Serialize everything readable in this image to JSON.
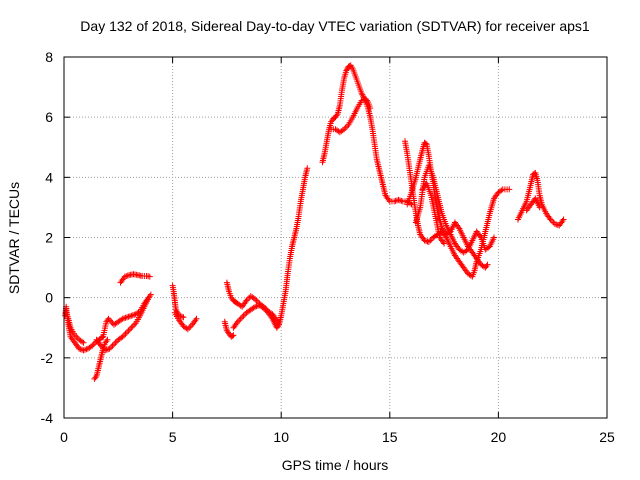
{
  "chart_data": {
    "type": "scatter",
    "title": "Day 132 of 2018, Sidereal Day-to-day VTEC variation (SDTVAR) for receiver aps1",
    "xlabel": "GPS time / hours",
    "ylabel": "SDTVAR / TECUs",
    "xlim": [
      0,
      25
    ],
    "ylim": [
      -4,
      8
    ],
    "xticks": [
      0,
      5,
      10,
      15,
      20,
      25
    ],
    "yticks": [
      -4,
      -2,
      0,
      2,
      4,
      6,
      8
    ],
    "grid": true,
    "marker": "+",
    "colors": {
      "series": "#ff0000",
      "grid": "#a0a0a0",
      "axes": "#000000"
    },
    "series": [
      {
        "name": "SDTVAR",
        "segments": [
          [
            [
              0.05,
              -0.6
            ],
            [
              0.1,
              -0.3
            ],
            [
              0.2,
              -0.9
            ],
            [
              0.3,
              -1.3
            ],
            [
              0.5,
              -1.5
            ],
            [
              0.7,
              -1.7
            ],
            [
              0.9,
              -1.75
            ],
            [
              1.1,
              -1.7
            ],
            [
              1.3,
              -1.6
            ],
            [
              1.5,
              -1.45
            ],
            [
              1.7,
              -1.35
            ],
            [
              1.8,
              -1.3
            ]
          ],
          [
            [
              0.1,
              -0.5
            ],
            [
              0.2,
              -0.7
            ],
            [
              0.3,
              -1.0
            ],
            [
              0.5,
              -1.25
            ],
            [
              0.7,
              -1.4
            ],
            [
              0.9,
              -1.5
            ]
          ],
          [
            [
              1.4,
              -2.7
            ],
            [
              1.5,
              -2.6
            ],
            [
              1.6,
              -2.3
            ],
            [
              1.7,
              -2.0
            ],
            [
              1.8,
              -1.7
            ],
            [
              1.9,
              -1.5
            ],
            [
              2.0,
              -1.4
            ]
          ],
          [
            [
              1.5,
              -1.4
            ],
            [
              1.7,
              -1.6
            ],
            [
              1.9,
              -1.75
            ],
            [
              2.1,
              -1.7
            ],
            [
              2.3,
              -1.55
            ],
            [
              2.5,
              -1.4
            ],
            [
              2.7,
              -1.3
            ],
            [
              2.9,
              -1.15
            ],
            [
              3.1,
              -1.0
            ],
            [
              3.3,
              -0.85
            ],
            [
              3.5,
              -0.6
            ],
            [
              3.7,
              -0.3
            ],
            [
              3.9,
              0.0
            ],
            [
              4.0,
              0.1
            ]
          ],
          [
            [
              1.8,
              -1.3
            ],
            [
              1.95,
              -0.8
            ],
            [
              2.05,
              -0.7
            ],
            [
              2.3,
              -0.9
            ],
            [
              2.5,
              -0.8
            ],
            [
              2.7,
              -0.7
            ],
            [
              2.9,
              -0.65
            ],
            [
              3.1,
              -0.6
            ],
            [
              3.3,
              -0.55
            ],
            [
              3.5,
              -0.45
            ],
            [
              3.7,
              -0.2
            ],
            [
              3.85,
              -0.05
            ]
          ],
          [
            [
              2.6,
              0.5
            ],
            [
              2.7,
              0.6
            ],
            [
              2.8,
              0.7
            ],
            [
              3.0,
              0.75
            ],
            [
              3.2,
              0.78
            ],
            [
              3.4,
              0.75
            ],
            [
              3.6,
              0.72
            ],
            [
              3.8,
              0.72
            ],
            [
              3.95,
              0.7
            ]
          ],
          [
            [
              5.0,
              0.4
            ],
            [
              5.05,
              0.2
            ],
            [
              5.1,
              -0.1
            ],
            [
              5.15,
              -0.4
            ],
            [
              5.3,
              -0.6
            ],
            [
              5.5,
              -0.65
            ]
          ],
          [
            [
              5.1,
              -0.5
            ],
            [
              5.3,
              -0.75
            ],
            [
              5.5,
              -0.95
            ],
            [
              5.7,
              -1.05
            ],
            [
              5.9,
              -0.9
            ],
            [
              6.1,
              -0.7
            ]
          ],
          [
            [
              7.4,
              -0.8
            ],
            [
              7.5,
              -1.1
            ],
            [
              7.6,
              -1.2
            ],
            [
              7.7,
              -1.3
            ],
            [
              7.8,
              -1.25
            ]
          ],
          [
            [
              7.5,
              0.5
            ],
            [
              7.6,
              0.2
            ],
            [
              7.7,
              0.0
            ],
            [
              7.8,
              -0.1
            ],
            [
              7.9,
              -0.15
            ],
            [
              8.0,
              -0.2
            ],
            [
              8.2,
              -0.3
            ],
            [
              8.4,
              -0.1
            ],
            [
              8.6,
              0.05
            ],
            [
              8.8,
              -0.05
            ],
            [
              9.0,
              -0.2
            ],
            [
              9.2,
              -0.3
            ],
            [
              9.4,
              -0.45
            ],
            [
              9.6,
              -0.55
            ],
            [
              9.8,
              -0.75
            ],
            [
              9.9,
              -0.9
            ]
          ],
          [
            [
              7.8,
              -1.0
            ],
            [
              8.0,
              -0.8
            ],
            [
              8.2,
              -0.65
            ],
            [
              8.4,
              -0.5
            ],
            [
              8.6,
              -0.4
            ],
            [
              8.8,
              -0.3
            ],
            [
              9.0,
              -0.25
            ],
            [
              9.2,
              -0.35
            ],
            [
              9.4,
              -0.5
            ],
            [
              9.6,
              -0.7
            ],
            [
              9.7,
              -0.85
            ],
            [
              9.8,
              -1.0
            ],
            [
              9.9,
              -0.9
            ],
            [
              10.0,
              -0.6
            ],
            [
              10.1,
              -0.2
            ],
            [
              10.2,
              0.2
            ],
            [
              10.3,
              0.8
            ],
            [
              10.4,
              1.3
            ],
            [
              10.5,
              1.7
            ],
            [
              10.6,
              2.0
            ],
            [
              10.7,
              2.3
            ],
            [
              10.8,
              2.7
            ],
            [
              10.9,
              3.2
            ],
            [
              11.0,
              3.6
            ],
            [
              11.1,
              4.0
            ],
            [
              11.2,
              4.3
            ]
          ],
          [
            [
              11.9,
              4.5
            ],
            [
              12.0,
              4.8
            ],
            [
              12.1,
              5.2
            ],
            [
              12.2,
              5.6
            ],
            [
              12.3,
              5.85
            ],
            [
              12.4,
              5.95
            ],
            [
              12.5,
              6.0
            ],
            [
              12.6,
              6.1
            ],
            [
              12.7,
              6.4
            ],
            [
              12.8,
              6.9
            ],
            [
              12.9,
              7.3
            ],
            [
              13.0,
              7.55
            ],
            [
              13.1,
              7.68
            ],
            [
              13.2,
              7.72
            ],
            [
              13.3,
              7.6
            ],
            [
              13.4,
              7.4
            ],
            [
              13.5,
              7.2
            ],
            [
              13.6,
              7.0
            ],
            [
              13.7,
              6.8
            ],
            [
              13.8,
              6.65
            ],
            [
              13.9,
              6.5
            ],
            [
              14.0,
              6.3
            ],
            [
              14.1,
              6.0
            ],
            [
              14.2,
              5.6
            ],
            [
              14.3,
              5.1
            ],
            [
              14.4,
              4.6
            ],
            [
              14.5,
              4.3
            ],
            [
              14.6,
              4.0
            ],
            [
              14.7,
              3.7
            ],
            [
              14.8,
              3.4
            ],
            [
              14.9,
              3.3
            ],
            [
              15.0,
              3.2
            ],
            [
              15.2,
              3.2
            ],
            [
              15.4,
              3.25
            ],
            [
              15.6,
              3.2
            ],
            [
              15.8,
              3.2
            ],
            [
              16.0,
              3.1
            ]
          ],
          [
            [
              12.3,
              5.6
            ],
            [
              12.5,
              5.6
            ],
            [
              12.7,
              5.5
            ],
            [
              12.9,
              5.6
            ],
            [
              13.1,
              5.75
            ],
            [
              13.3,
              6.0
            ],
            [
              13.5,
              6.3
            ],
            [
              13.7,
              6.55
            ],
            [
              13.9,
              6.6
            ],
            [
              14.0,
              6.5
            ],
            [
              14.1,
              6.3
            ]
          ],
          [
            [
              15.7,
              5.2
            ],
            [
              15.8,
              4.8
            ],
            [
              15.9,
              4.3
            ],
            [
              16.0,
              3.8
            ],
            [
              16.1,
              3.3
            ],
            [
              16.2,
              2.8
            ],
            [
              16.3,
              2.4
            ],
            [
              16.4,
              2.1
            ],
            [
              16.6,
              1.9
            ],
            [
              16.8,
              1.85
            ],
            [
              17.0,
              2.0
            ],
            [
              17.2,
              2.1
            ],
            [
              17.4,
              2.2
            ],
            [
              17.6,
              2.0
            ],
            [
              17.8,
              1.7
            ],
            [
              18.0,
              1.4
            ],
            [
              18.2,
              1.2
            ],
            [
              18.4,
              1.0
            ],
            [
              18.6,
              0.8
            ],
            [
              18.8,
              0.7
            ],
            [
              18.9,
              0.9
            ],
            [
              19.0,
              1.2
            ],
            [
              19.2,
              1.6
            ],
            [
              19.4,
              2.2
            ],
            [
              19.6,
              2.8
            ],
            [
              19.8,
              3.3
            ],
            [
              20.0,
              3.5
            ],
            [
              20.2,
              3.6
            ],
            [
              20.5,
              3.6
            ]
          ],
          [
            [
              15.8,
              3.1
            ],
            [
              16.0,
              3.5
            ],
            [
              16.2,
              4.0
            ],
            [
              16.4,
              4.6
            ],
            [
              16.5,
              4.9
            ],
            [
              16.6,
              5.15
            ],
            [
              16.7,
              5.1
            ],
            [
              16.8,
              4.7
            ],
            [
              16.9,
              4.2
            ],
            [
              17.0,
              3.8
            ],
            [
              17.1,
              3.3
            ],
            [
              17.2,
              2.9
            ],
            [
              17.3,
              2.6
            ],
            [
              17.4,
              2.3
            ],
            [
              17.6,
              2.1
            ],
            [
              17.8,
              2.2
            ],
            [
              18.0,
              2.5
            ],
            [
              18.2,
              2.3
            ],
            [
              18.4,
              2.0
            ],
            [
              18.6,
              1.7
            ],
            [
              18.8,
              1.5
            ],
            [
              19.0,
              1.3
            ],
            [
              19.2,
              1.1
            ],
            [
              19.4,
              1.0
            ],
            [
              19.5,
              1.1
            ]
          ],
          [
            [
              16.2,
              2.5
            ],
            [
              16.4,
              3.0
            ],
            [
              16.6,
              4.0
            ],
            [
              16.8,
              4.4
            ],
            [
              17.0,
              4.0
            ],
            [
              17.2,
              3.4
            ],
            [
              17.4,
              2.8
            ],
            [
              17.6,
              2.4
            ],
            [
              17.8,
              2.1
            ],
            [
              18.0,
              1.8
            ],
            [
              18.2,
              1.6
            ],
            [
              18.4,
              1.5
            ],
            [
              18.6,
              1.6
            ],
            [
              18.8,
              1.9
            ],
            [
              19.0,
              2.2
            ],
            [
              19.2,
              2.0
            ],
            [
              19.4,
              1.6
            ],
            [
              19.6,
              1.7
            ],
            [
              19.8,
              2.0
            ]
          ],
          [
            [
              16.5,
              3.6
            ],
            [
              16.7,
              3.8
            ],
            [
              16.9,
              3.4
            ],
            [
              17.1,
              2.7
            ],
            [
              17.3,
              2.0
            ],
            [
              17.5,
              1.8
            ]
          ],
          [
            [
              20.9,
              2.6
            ],
            [
              21.1,
              2.9
            ],
            [
              21.3,
              3.2
            ],
            [
              21.5,
              3.8
            ],
            [
              21.6,
              4.1
            ],
            [
              21.7,
              4.15
            ],
            [
              21.8,
              3.9
            ],
            [
              21.9,
              3.4
            ],
            [
              22.0,
              3.1
            ],
            [
              22.2,
              2.8
            ],
            [
              22.4,
              2.6
            ],
            [
              22.6,
              2.45
            ],
            [
              22.8,
              2.4
            ],
            [
              23.0,
              2.6
            ]
          ],
          [
            [
              21.3,
              2.9
            ],
            [
              21.5,
              3.1
            ],
            [
              21.7,
              3.3
            ],
            [
              21.9,
              3.0
            ]
          ]
        ]
      }
    ]
  }
}
